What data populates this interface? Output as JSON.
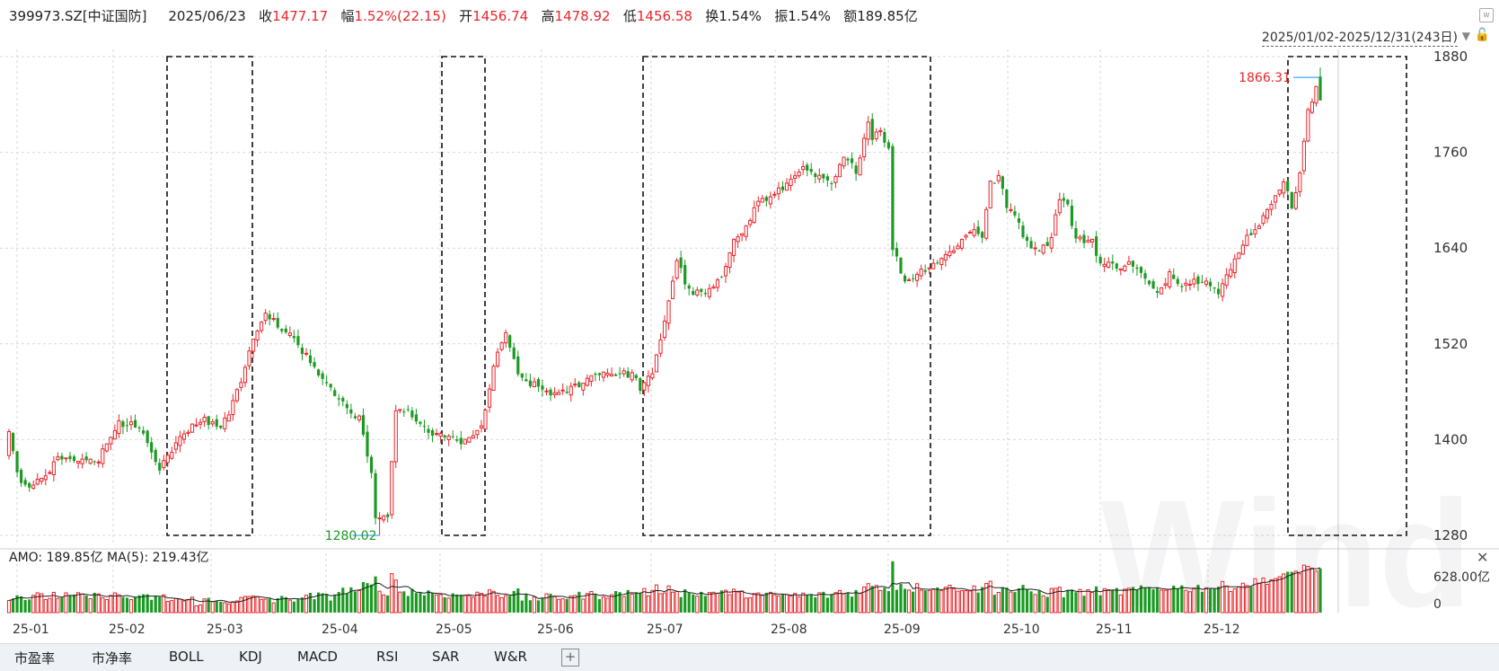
{
  "header": {
    "code": "399973.SZ[中证国防]",
    "date": "2025/06/23",
    "close_label": "收",
    "close": "1477.17",
    "change_label": "幅",
    "change": "1.52%(22.15)",
    "open_label": "开",
    "open": "1456.74",
    "high_label": "高",
    "high": "1478.92",
    "low_label": "低",
    "low": "1456.58",
    "turnover_label": "换",
    "turnover": "1.54%",
    "amplitude_label": "振",
    "amplitude": "1.54%",
    "amount_label": "额",
    "amount": "189.85亿"
  },
  "range_label": "2025/01/02-2025/12/31(243日)",
  "icons": {
    "top_right": "wind-logo-icon",
    "dropdown": "chevron-down-icon",
    "lock": "lock-icon",
    "close": "close-icon"
  },
  "colors": {
    "up": "#e8262b",
    "down": "#1b9a23",
    "ma_line": "#222222",
    "grid": "#d5d9e0",
    "box": "#111111"
  },
  "watermark": "Wind",
  "volume_panel": {
    "label": "AMO: 189.85亿  MA(5): 219.43亿",
    "ylabels": [
      "628.00亿",
      "0"
    ],
    "max": 628
  },
  "tabs": [
    "市盈率",
    "市净率",
    "BOLL",
    "KDJ",
    "MACD",
    "RSI",
    "SAR",
    "W&R"
  ],
  "chart_data": {
    "type": "candlestick",
    "ylim": [
      1280,
      1880
    ],
    "yticks": [
      1880,
      1760,
      1640,
      1520,
      1400,
      1280
    ],
    "xticks": [
      "25-01",
      "25-02",
      "25-03",
      "25-04",
      "25-05",
      "25-06",
      "25-07",
      "25-08",
      "25-09",
      "25-10",
      "25-11",
      "25-12"
    ],
    "grid": true,
    "annotations": [
      {
        "text": "1866.31",
        "value": 1866.31,
        "kind": "max"
      },
      {
        "text": "1280.02",
        "value": 1280.02,
        "kind": "min"
      }
    ],
    "highlight_windows": [
      {
        "from_month": "25-02",
        "to_month": "25-03"
      },
      {
        "from_month": "25-04",
        "to_month": "25-05"
      },
      {
        "from_month": "25-06",
        "to_month": "25-09"
      },
      {
        "from_month": "25-12",
        "to_month": "25-12"
      }
    ],
    "anchors_close": [
      [
        0,
        1410
      ],
      [
        2,
        1355
      ],
      [
        5,
        1340
      ],
      [
        9,
        1355
      ],
      [
        12,
        1380
      ],
      [
        17,
        1370
      ],
      [
        22,
        1375
      ],
      [
        27,
        1420
      ],
      [
        31,
        1418
      ],
      [
        34,
        1400
      ],
      [
        37,
        1360
      ],
      [
        42,
        1405
      ],
      [
        48,
        1425
      ],
      [
        52,
        1410
      ],
      [
        57,
        1470
      ],
      [
        60,
        1530
      ],
      [
        63,
        1560
      ],
      [
        68,
        1535
      ],
      [
        73,
        1505
      ],
      [
        78,
        1470
      ],
      [
        82,
        1448
      ],
      [
        86,
        1425
      ],
      [
        89,
        1360
      ],
      [
        90,
        1300
      ],
      [
        93,
        1300
      ],
      [
        95,
        1440
      ],
      [
        98,
        1438
      ],
      [
        101,
        1415
      ],
      [
        106,
        1405
      ],
      [
        109,
        1400
      ],
      [
        113,
        1398
      ],
      [
        116,
        1415
      ],
      [
        119,
        1490
      ],
      [
        122,
        1535
      ],
      [
        125,
        1478
      ],
      [
        130,
        1465
      ],
      [
        135,
        1455
      ],
      [
        140,
        1470
      ],
      [
        145,
        1485
      ],
      [
        150,
        1482
      ],
      [
        153,
        1482
      ],
      [
        155,
        1465
      ],
      [
        158,
        1480
      ],
      [
        161,
        1550
      ],
      [
        164,
        1625
      ],
      [
        167,
        1585
      ],
      [
        171,
        1582
      ],
      [
        175,
        1600
      ],
      [
        178,
        1655
      ],
      [
        181,
        1665
      ],
      [
        184,
        1700
      ],
      [
        187,
        1702
      ],
      [
        191,
        1720
      ],
      [
        194,
        1740
      ],
      [
        198,
        1730
      ],
      [
        202,
        1718
      ],
      [
        205,
        1752
      ],
      [
        208,
        1738
      ],
      [
        211,
        1798
      ],
      [
        212,
        1780
      ],
      [
        214,
        1790
      ],
      [
        216,
        1762
      ],
      [
        217,
        1640
      ],
      [
        220,
        1598
      ],
      [
        225,
        1615
      ],
      [
        230,
        1630
      ],
      [
        234,
        1650
      ],
      [
        237,
        1665
      ],
      [
        239,
        1655
      ],
      [
        241,
        1720
      ],
      [
        243,
        1730
      ],
      [
        245,
        1690
      ],
      [
        247,
        1685
      ],
      [
        250,
        1645
      ],
      [
        254,
        1640
      ],
      [
        256,
        1655
      ],
      [
        258,
        1705
      ],
      [
        260,
        1692
      ],
      [
        262,
        1650
      ],
      [
        266,
        1650
      ],
      [
        268,
        1620
      ],
      [
        272,
        1618
      ],
      [
        276,
        1620
      ],
      [
        279,
        1600
      ],
      [
        282,
        1580
      ],
      [
        285,
        1610
      ],
      [
        288,
        1595
      ],
      [
        292,
        1600
      ],
      [
        294,
        1603
      ],
      [
        297,
        1583
      ],
      [
        300,
        1613
      ],
      [
        303,
        1648
      ],
      [
        306,
        1665
      ],
      [
        309,
        1684
      ],
      [
        311,
        1710
      ],
      [
        313,
        1725
      ],
      [
        315,
        1690
      ],
      [
        317,
        1735
      ],
      [
        319,
        1810
      ],
      [
        321,
        1838
      ],
      [
        322,
        1866
      ]
    ]
  }
}
